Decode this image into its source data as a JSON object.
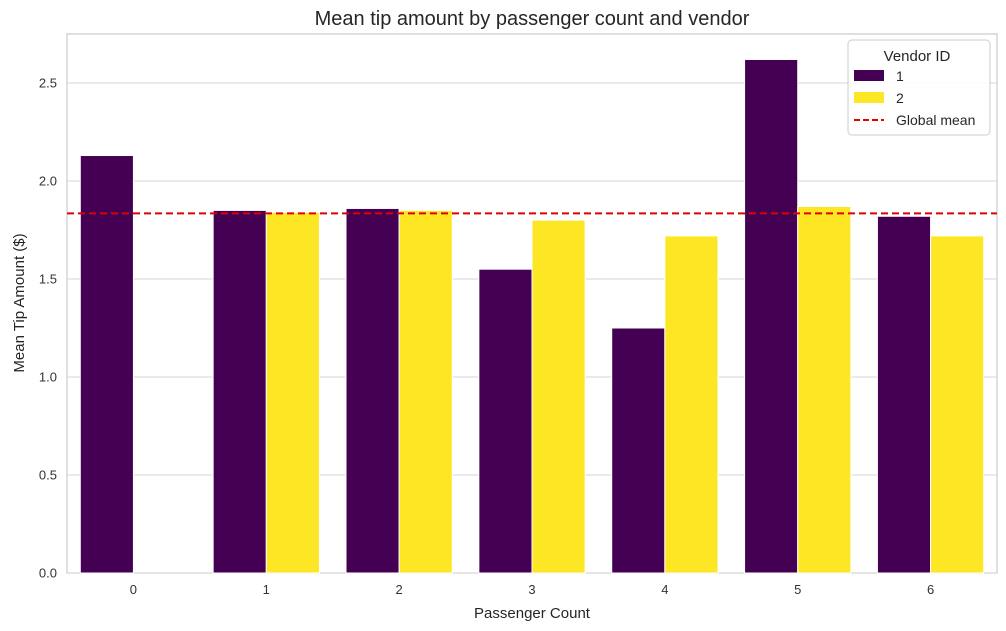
{
  "chart_data": {
    "type": "bar",
    "title": "Mean tip amount by passenger count and vendor",
    "xlabel": "Passenger Count",
    "ylabel": "Mean Tip Amount ($)",
    "categories": [
      "0",
      "1",
      "2",
      "3",
      "4",
      "5",
      "6"
    ],
    "series": [
      {
        "name": "1",
        "color": "#440154",
        "values": [
          2.13,
          1.85,
          1.86,
          1.55,
          1.25,
          2.62,
          1.82
        ]
      },
      {
        "name": "2",
        "color": "#fde725",
        "values": [
          null,
          1.84,
          1.85,
          1.8,
          1.72,
          1.87,
          1.72
        ]
      }
    ],
    "reference_line": {
      "label": "Global mean",
      "value": 1.835,
      "color": "#e00000",
      "style": "dashed"
    },
    "ylim": [
      0,
      2.75
    ],
    "yticks": [
      "0.0",
      "0.5",
      "1.0",
      "1.5",
      "2.0",
      "2.5"
    ],
    "grid": true,
    "legend": {
      "title": "Vendor ID",
      "placement": "top-right"
    }
  }
}
